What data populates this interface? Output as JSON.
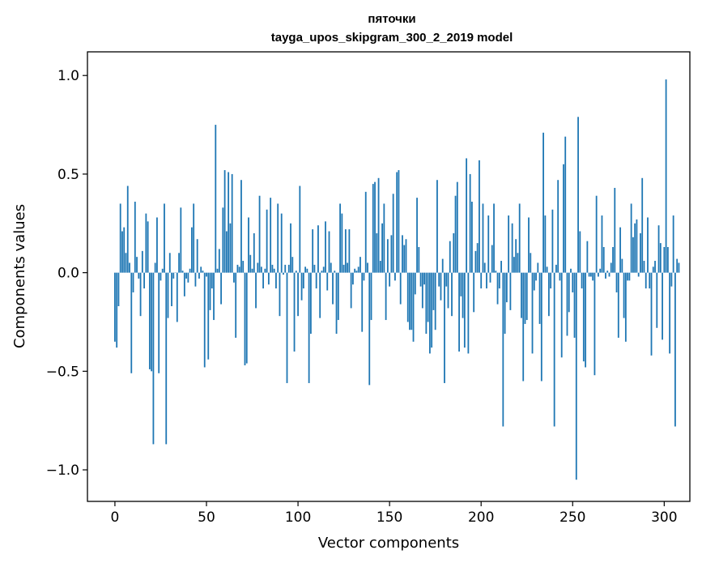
{
  "chart_data": {
    "type": "bar",
    "title_line1": "пяточки",
    "title_line2": "tayga_upos_skipgram_300_2_2019 model",
    "xlabel": "Vector components",
    "ylabel": "Components values",
    "xlim": [
      -15,
      314
    ],
    "ylim": [
      -1.16,
      1.12
    ],
    "xticks": [
      0,
      50,
      100,
      150,
      200,
      250,
      300
    ],
    "xtick_labels": [
      "0",
      "50",
      "100",
      "150",
      "200",
      "250",
      "300"
    ],
    "yticks": [
      1.0,
      0.5,
      0.0,
      -0.5,
      -1.0
    ],
    "ytick_labels": [
      "1.0",
      "0.5",
      "0.0",
      "−0.5",
      "−1.0"
    ],
    "bar_color": "#1f77b4",
    "values": [
      -0.35,
      -0.38,
      -0.17,
      0.35,
      0.21,
      0.23,
      0.1,
      0.44,
      0.05,
      -0.51,
      -0.1,
      0.36,
      0.08,
      -0.03,
      -0.22,
      0.11,
      -0.08,
      0.3,
      0.26,
      -0.49,
      -0.5,
      -0.87,
      0.05,
      0.28,
      -0.51,
      -0.04,
      0.02,
      0.35,
      -0.87,
      -0.23,
      0.1,
      -0.17,
      -0.03,
      0.0,
      -0.25,
      0.1,
      0.33,
      0.01,
      -0.12,
      -0.03,
      -0.05,
      0.02,
      0.23,
      0.35,
      -0.07,
      0.17,
      -0.03,
      0.03,
      0.01,
      -0.48,
      -0.02,
      -0.44,
      -0.19,
      -0.08,
      -0.24,
      0.75,
      0.02,
      0.12,
      -0.16,
      0.33,
      0.52,
      0.21,
      0.51,
      0.25,
      0.5,
      -0.05,
      -0.33,
      0.04,
      0.03,
      0.47,
      0.06,
      -0.47,
      -0.46,
      0.28,
      0.09,
      0.02,
      0.2,
      -0.18,
      0.05,
      0.39,
      0.03,
      -0.08,
      0.02,
      0.32,
      -0.06,
      0.38,
      0.04,
      0.02,
      -0.08,
      0.35,
      -0.22,
      0.3,
      -0.01,
      0.04,
      -0.56,
      0.04,
      0.25,
      0.08,
      -0.4,
      0.01,
      -0.22,
      0.44,
      -0.14,
      -0.08,
      0.03,
      0.02,
      -0.56,
      -0.31,
      0.22,
      0.04,
      -0.08,
      0.24,
      -0.23,
      0.01,
      0.03,
      0.26,
      -0.09,
      0.21,
      0.05,
      -0.16,
      0.01,
      -0.31,
      -0.24,
      0.35,
      0.3,
      0.04,
      0.22,
      0.05,
      0.22,
      -0.18,
      -0.06,
      0.02,
      0.01,
      0.03,
      0.08,
      -0.3,
      -0.04,
      0.41,
      0.05,
      -0.57,
      -0.24,
      0.45,
      0.46,
      0.2,
      0.48,
      0.06,
      0.25,
      0.35,
      -0.24,
      0.17,
      -0.07,
      0.19,
      0.4,
      -0.04,
      0.51,
      0.52,
      -0.16,
      0.19,
      0.14,
      0.17,
      -0.25,
      -0.29,
      -0.29,
      -0.35,
      -0.11,
      0.38,
      0.13,
      -0.07,
      -0.18,
      -0.06,
      -0.31,
      -0.25,
      -0.41,
      -0.38,
      -0.19,
      -0.29,
      0.47,
      -0.07,
      -0.14,
      0.07,
      -0.56,
      -0.07,
      -0.18,
      0.16,
      -0.22,
      0.2,
      0.39,
      0.46,
      -0.4,
      -0.12,
      -0.23,
      -0.38,
      0.58,
      -0.41,
      0.5,
      0.36,
      -0.2,
      0.11,
      0.15,
      0.57,
      -0.08,
      0.35,
      0.05,
      -0.08,
      0.29,
      -0.05,
      0.14,
      0.35,
      0.01,
      -0.16,
      -0.08,
      0.06,
      -0.78,
      -0.31,
      -0.15,
      0.29,
      -0.19,
      0.25,
      0.08,
      0.17,
      0.1,
      0.35,
      -0.23,
      -0.55,
      -0.26,
      -0.24,
      0.28,
      0.1,
      -0.41,
      -0.09,
      -0.04,
      0.05,
      -0.26,
      -0.55,
      0.71,
      0.29,
      0.03,
      -0.22,
      -0.08,
      0.32,
      -0.78,
      0.04,
      0.47,
      -0.04,
      -0.43,
      0.55,
      0.69,
      -0.32,
      -0.2,
      0.02,
      -0.1,
      -0.33,
      -1.05,
      0.79,
      0.21,
      -0.08,
      -0.45,
      -0.48,
      0.16,
      -0.02,
      -0.02,
      -0.04,
      -0.52,
      0.39,
      -0.02,
      0.02,
      0.29,
      0.13,
      -0.03,
      0.01,
      -0.02,
      0.05,
      0.13,
      0.43,
      -0.1,
      -0.33,
      0.23,
      0.07,
      -0.23,
      -0.35,
      -0.04,
      -0.04,
      0.35,
      0.18,
      0.25,
      0.27,
      -0.02,
      0.2,
      0.48,
      0.06,
      -0.08,
      0.28,
      -0.08,
      -0.42,
      0.03,
      0.06,
      -0.28,
      0.24,
      0.15,
      -0.34,
      0.13,
      0.98,
      0.13,
      -0.41,
      -0.07,
      0.29,
      -0.78,
      0.07,
      0.05
    ]
  }
}
